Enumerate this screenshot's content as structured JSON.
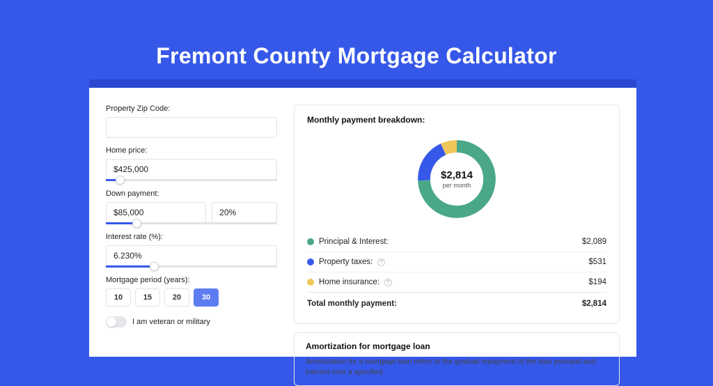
{
  "page": {
    "background_color": "#3658e8",
    "title": "Fremont County Mortgage Calculator",
    "title_fontsize": 32,
    "title_color": "#ffffff"
  },
  "form": {
    "zip": {
      "label": "Property Zip Code:",
      "value": ""
    },
    "home_price": {
      "label": "Home price:",
      "value": "$425,000",
      "slider_percent": 8
    },
    "down_payment": {
      "label": "Down payment:",
      "value": "$85,000",
      "percent_value": "20%",
      "slider_percent": 18
    },
    "interest": {
      "label": "Interest rate (%):",
      "value": "6.230%",
      "slider_percent": 28
    },
    "period": {
      "label": "Mortgage period (years):",
      "options": [
        "10",
        "15",
        "20",
        "30"
      ],
      "selected_index": 3
    },
    "veteran": {
      "label": "I am veteran or military",
      "checked": false
    }
  },
  "breakdown": {
    "title": "Monthly payment breakdown:",
    "total_value": "$2,814",
    "total_sub": "per month",
    "donut": {
      "type": "pie",
      "ring_width": 14,
      "size": 124,
      "slices": [
        {
          "key": "principal_interest",
          "value": 2089,
          "color": "#4aa889"
        },
        {
          "key": "property_taxes",
          "value": 531,
          "color": "#3658e8"
        },
        {
          "key": "home_insurance",
          "value": 194,
          "color": "#f0c65a"
        }
      ]
    },
    "lines": [
      {
        "label": "Principal & Interest:",
        "amount": "$2,089",
        "color": "#4aa889",
        "has_info": false
      },
      {
        "label": "Property taxes:",
        "amount": "$531",
        "color": "#3658e8",
        "has_info": true
      },
      {
        "label": "Home insurance:",
        "amount": "$194",
        "color": "#f0c65a",
        "has_info": true
      }
    ],
    "total_row": {
      "label": "Total monthly payment:",
      "amount": "$2,814"
    }
  },
  "amortization": {
    "title": "Amortization for mortgage loan",
    "body": "Amortization for a mortgage loan refers to the gradual repayment of the loan principal and interest over a specified"
  }
}
